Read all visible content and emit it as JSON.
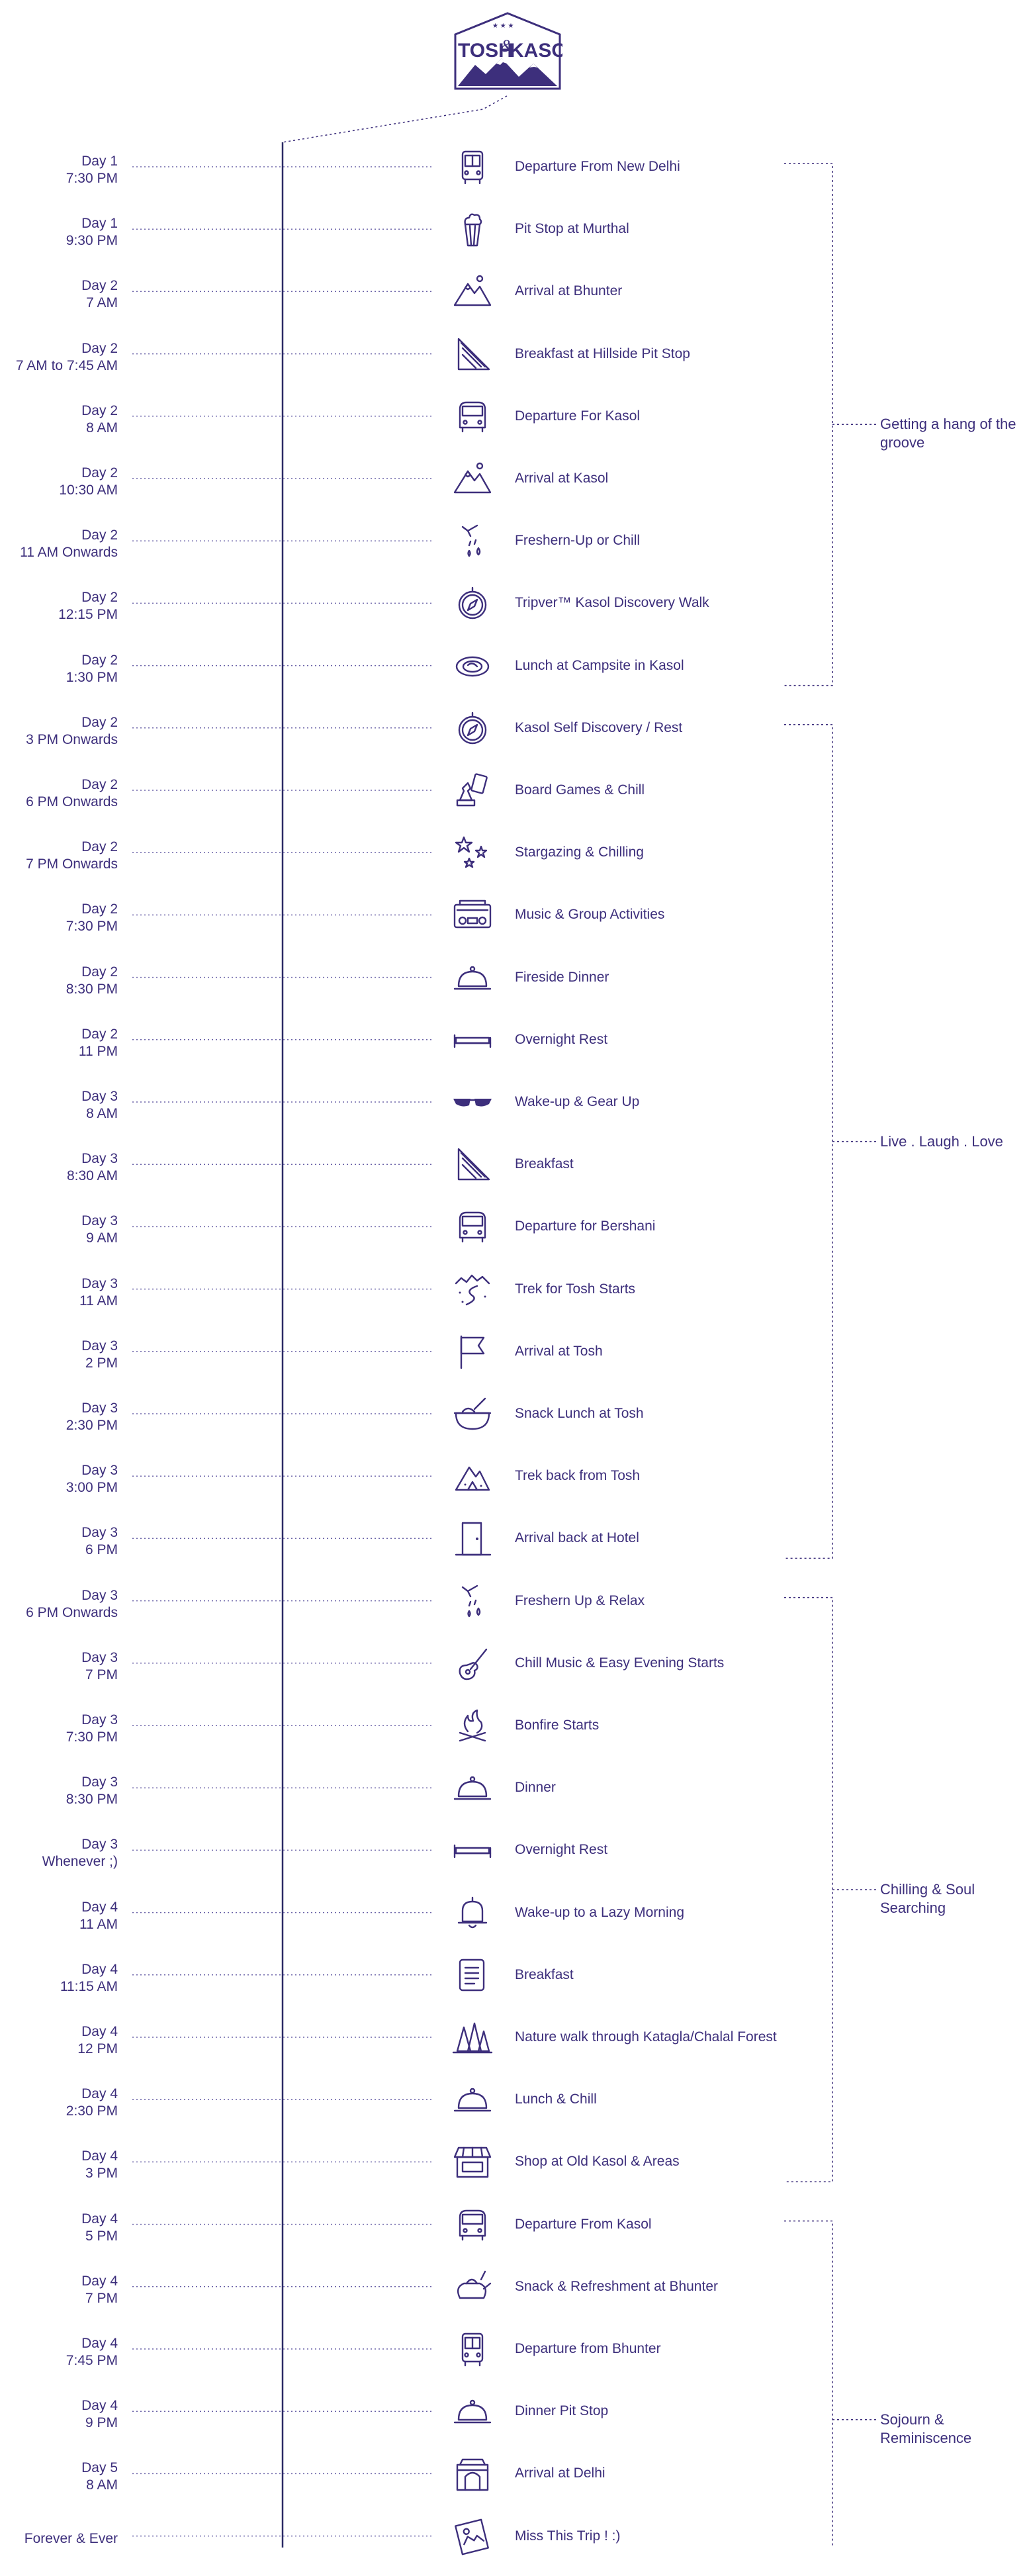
{
  "brand": {
    "logo_text_top": "TOSH",
    "logo_text_mid": "&",
    "logo_text_bottom": "KASOL",
    "logo_small": ""
  },
  "colors": {
    "primary": "#3d2f7c",
    "line": "#2b2a66",
    "dots": "#6b63a8"
  },
  "phases": [
    {
      "label": "Getting a hang of the groove",
      "start": 0,
      "end": 8
    },
    {
      "label": "Live . Laugh . Love",
      "start": 9,
      "end": 22
    },
    {
      "label": "Chilling & Soul Searching",
      "start": 23,
      "end": 32
    },
    {
      "label": "Sojourn & Reminiscence",
      "start": 33,
      "end": 39
    }
  ],
  "events": [
    {
      "day": "Day 1",
      "time": "7:30 PM",
      "label": "Departure From New Delhi",
      "icon": "bus-icon"
    },
    {
      "day": "Day 1",
      "time": "9:30 PM",
      "label": "Pit Stop at Murthal",
      "icon": "popcorn-icon"
    },
    {
      "day": "Day 2",
      "time": "7 AM",
      "label": "Arrival at Bhunter",
      "icon": "mountain-icon"
    },
    {
      "day": "Day 2",
      "time": "7 AM to 7:45 AM",
      "label": "Breakfast at Hillside Pit Stop",
      "icon": "sandwich-icon"
    },
    {
      "day": "Day 2",
      "time": "8 AM",
      "label": "Departure For Kasol",
      "icon": "van-icon"
    },
    {
      "day": "Day 2",
      "time": "10:30 AM",
      "label": "Arrival at Kasol",
      "icon": "mountain-icon"
    },
    {
      "day": "Day 2",
      "time": "11 AM Onwards",
      "label": "Freshern-Up or Chill",
      "icon": "shower-icon"
    },
    {
      "day": "Day 2",
      "time": "12:15 PM",
      "label": "Tripver™ Kasol Discovery Walk",
      "icon": "compass-icon"
    },
    {
      "day": "Day 2",
      "time": "1:30 PM",
      "label": "Lunch at Campsite in Kasol",
      "icon": "plate-icon"
    },
    {
      "day": "Day 2",
      "time": "3 PM Onwards",
      "label": "Kasol Self Discovery / Rest",
      "icon": "compass-icon"
    },
    {
      "day": "Day 2",
      "time": "6 PM Onwards",
      "label": "Board Games & Chill",
      "icon": "board-games-icon"
    },
    {
      "day": "Day 2",
      "time": "7 PM Onwards",
      "label": "Stargazing & Chilling",
      "icon": "stars-icon"
    },
    {
      "day": "Day 2",
      "time": "7:30 PM",
      "label": "Music & Group Activities",
      "icon": "boombox-icon"
    },
    {
      "day": "Day 2",
      "time": "8:30 PM",
      "label": "Fireside Dinner",
      "icon": "cloche-icon"
    },
    {
      "day": "Day 2",
      "time": "11 PM",
      "label": "Overnight Rest",
      "icon": "bed-icon"
    },
    {
      "day": "Day 3",
      "time": "8 AM",
      "label": "Wake-up & Gear Up",
      "icon": "sunglasses-icon"
    },
    {
      "day": "Day 3",
      "time": "8:30 AM",
      "label": "Breakfast",
      "icon": "sandwich-icon"
    },
    {
      "day": "Day 3",
      "time": "9 AM",
      "label": "Departure for Bershani",
      "icon": "van-icon"
    },
    {
      "day": "Day 3",
      "time": "11 AM",
      "label": "Trek for Tosh Starts",
      "icon": "trail-icon"
    },
    {
      "day": "Day 3",
      "time": "2 PM",
      "label": "Arrival at Tosh",
      "icon": "flag-icon"
    },
    {
      "day": "Day 3",
      "time": "2:30 PM",
      "label": "Snack Lunch at Tosh",
      "icon": "bowl-icon"
    },
    {
      "day": "Day 3",
      "time": "3:00 PM",
      "label": "Trek back from Tosh",
      "icon": "camp-mountain-icon"
    },
    {
      "day": "Day 3",
      "time": "6 PM",
      "label": "Arrival back at Hotel",
      "icon": "door-icon"
    },
    {
      "day": "Day 3",
      "time": "6 PM Onwards",
      "label": "Freshern Up & Relax",
      "icon": "shower-icon"
    },
    {
      "day": "Day 3",
      "time": "7 PM",
      "label": "Chill Music & Easy Evening Starts",
      "icon": "guitar-icon"
    },
    {
      "day": "Day 3",
      "time": "7:30 PM",
      "label": "Bonfire Starts",
      "icon": "bonfire-icon"
    },
    {
      "day": "Day 3",
      "time": "8:30 PM",
      "label": "Dinner",
      "icon": "cloche-icon"
    },
    {
      "day": "Day 3",
      "time": "Whenever ;)",
      "label": "Overnight Rest",
      "icon": "bed-icon"
    },
    {
      "day": "Day 4",
      "time": "11 AM",
      "label": "Wake-up to a Lazy Morning",
      "icon": "bell-icon"
    },
    {
      "day": "Day 4",
      "time": "11:15 AM",
      "label": "Breakfast",
      "icon": "menu-card-icon"
    },
    {
      "day": "Day 4",
      "time": "12 PM",
      "label": "Nature walk through Katagla/Chalal Forest",
      "icon": "forest-icon"
    },
    {
      "day": "Day 4",
      "time": "2:30 PM",
      "label": "Lunch & Chill",
      "icon": "cloche-icon"
    },
    {
      "day": "Day 4",
      "time": "3 PM",
      "label": "Shop at Old Kasol & Areas",
      "icon": "shop-icon"
    },
    {
      "day": "Day 4",
      "time": "5 PM",
      "label": "Departure From Kasol",
      "icon": "van-icon"
    },
    {
      "day": "Day 4",
      "time": "7 PM",
      "label": "Snack & Refreshment at Bhunter",
      "icon": "kettle-icon"
    },
    {
      "day": "Day 4",
      "time": "7:45 PM",
      "label": "Departure from Bhunter",
      "icon": "bus-icon"
    },
    {
      "day": "Day 4",
      "time": "9 PM",
      "label": "Dinner Pit Stop",
      "icon": "cloche-icon"
    },
    {
      "day": "Day 5",
      "time": "8 AM",
      "label": "Arrival at Delhi",
      "icon": "india-gate-icon"
    },
    {
      "day": "",
      "time": "Forever & Ever",
      "label": "Miss This Trip ! :)",
      "icon": "photo-icon"
    }
  ]
}
